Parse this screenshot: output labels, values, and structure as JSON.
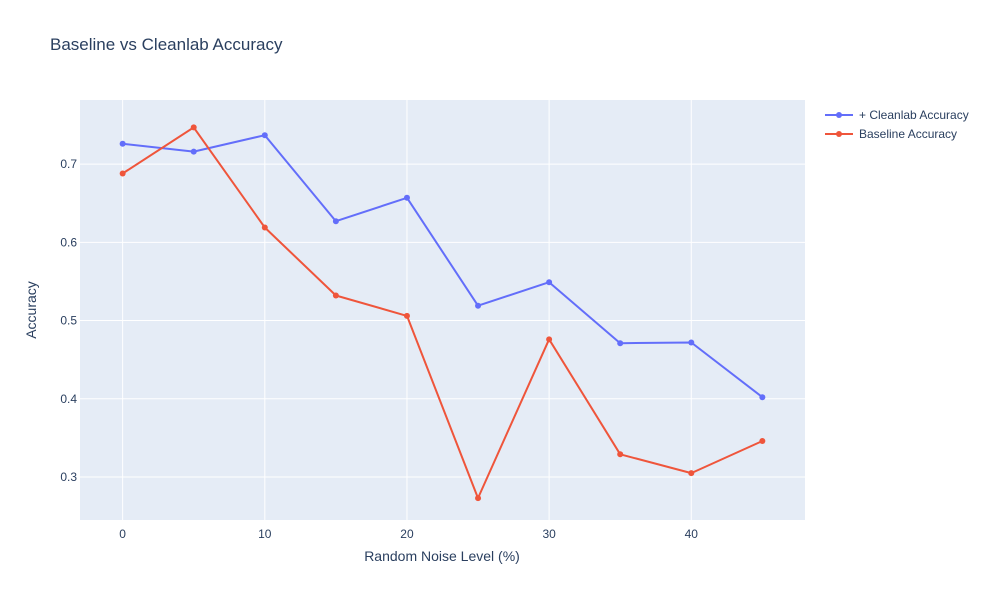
{
  "colors": {
    "plot_bg": "#e5ecf6",
    "grid": "#ffffff",
    "text": "#2a3f5f"
  },
  "chart_data": {
    "type": "line",
    "title": "Baseline vs Cleanlab Accuracy",
    "xlabel": "Random Noise Level (%)",
    "ylabel": "Accuracy",
    "x": [
      0,
      5,
      10,
      15,
      20,
      25,
      30,
      35,
      40,
      45
    ],
    "xlim": [
      -3,
      48
    ],
    "ylim": [
      0.245,
      0.782
    ],
    "xticks": [
      0,
      10,
      20,
      30,
      40
    ],
    "yticks": [
      0.3,
      0.4,
      0.5,
      0.6,
      0.7
    ],
    "grid": true,
    "legend_position": "top-right",
    "series": [
      {
        "name": "+ Cleanlab Accuracy",
        "color": "#636efa",
        "values": [
          0.726,
          0.716,
          0.737,
          0.627,
          0.657,
          0.519,
          0.549,
          0.471,
          0.472,
          0.402
        ]
      },
      {
        "name": "Baseline Accuracy",
        "color": "#ef553b",
        "values": [
          0.688,
          0.747,
          0.619,
          0.532,
          0.506,
          0.273,
          0.476,
          0.329,
          0.305,
          0.346
        ]
      }
    ]
  }
}
